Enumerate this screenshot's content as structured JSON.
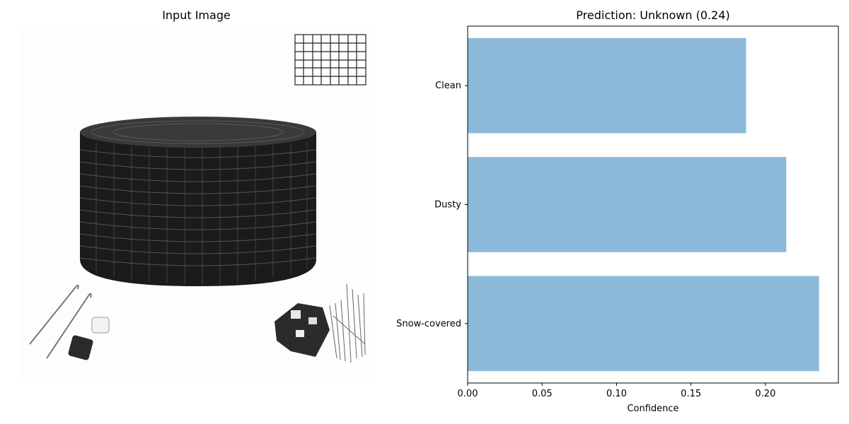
{
  "left_panel": {
    "title": "Input Image"
  },
  "photo": {
    "icon": "mesh-gutter-guard-roll-photo"
  },
  "chart_data": {
    "type": "bar",
    "orientation": "horizontal",
    "title": "Prediction: Unknown (0.24)",
    "xlabel": "Confidence",
    "ylabel": "",
    "categories": [
      "Clean",
      "Dusty",
      "Snow-covered"
    ],
    "values": [
      0.187,
      0.214,
      0.236
    ],
    "xlim": [
      0,
      0.249
    ],
    "xticks": [
      "0.00",
      "0.05",
      "0.10",
      "0.15",
      "0.20"
    ],
    "bar_color": "#8cb9d9",
    "grid": false
  }
}
